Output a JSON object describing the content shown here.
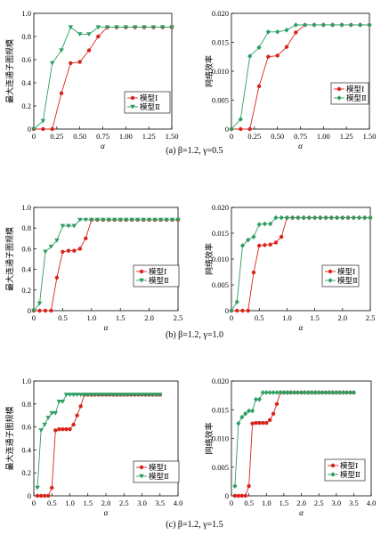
{
  "figure": {
    "captions": [
      "(a) β=1.2, γ=0.5",
      "(b) β=1.2, γ=1.0",
      "(c) β=1.2, γ=1.5"
    ]
  },
  "chart_data": [
    {
      "type": "line",
      "xlabel": "α",
      "ylabel": "最大连通子图规模",
      "xlim": [
        0,
        1.5
      ],
      "ylim": [
        0,
        1.0
      ],
      "xticks": [
        "0",
        "0.25",
        "0.50",
        "0.75",
        "1.00",
        "1.25",
        "1.50"
      ],
      "yticks": [
        "0",
        "0.2",
        "0.4",
        "0.6",
        "0.8",
        "1.0"
      ],
      "legend": "lower-right",
      "x": [
        0,
        0.1,
        0.2,
        0.3,
        0.4,
        0.5,
        0.6,
        0.7,
        0.8,
        0.9,
        1.0,
        1.1,
        1.2,
        1.3,
        1.4,
        1.5
      ],
      "series": [
        {
          "name": "模型Ⅰ",
          "color": "#d9241c",
          "marker": "circle",
          "values": [
            0,
            0,
            0,
            0.31,
            0.57,
            0.58,
            0.68,
            0.8,
            0.88,
            0.88,
            0.88,
            0.88,
            0.88,
            0.88,
            0.88,
            0.88
          ]
        },
        {
          "name": "模型Ⅱ",
          "color": "#2e9e63",
          "marker": "triangle-down",
          "values": [
            0,
            0.07,
            0.57,
            0.68,
            0.88,
            0.82,
            0.82,
            0.88,
            0.88,
            0.88,
            0.88,
            0.88,
            0.88,
            0.88,
            0.88,
            0.88
          ]
        }
      ]
    },
    {
      "type": "line",
      "xlabel": "α",
      "ylabel": "网络效率",
      "xlim": [
        0,
        1.5
      ],
      "ylim": [
        0,
        0.02
      ],
      "xticks": [
        "0",
        "0.25",
        "0.50",
        "0.75",
        "1.00",
        "1.25",
        "1.50"
      ],
      "yticks": [
        "0",
        "0.005",
        "0.010",
        "0.015",
        "0.020"
      ],
      "legend": "lower-right",
      "x": [
        0,
        0.1,
        0.2,
        0.3,
        0.4,
        0.5,
        0.6,
        0.7,
        0.8,
        0.9,
        1.0,
        1.1,
        1.2,
        1.3,
        1.4,
        1.5
      ],
      "series": [
        {
          "name": "模型Ⅰ",
          "color": "#d9241c",
          "marker": "circle",
          "values": [
            0,
            0,
            0,
            0.0074,
            0.0125,
            0.0127,
            0.0142,
            0.0167,
            0.018,
            0.018,
            0.018,
            0.018,
            0.018,
            0.018,
            0.018,
            0.018
          ]
        },
        {
          "name": "模型Ⅱ",
          "color": "#2e9e63",
          "marker": "diamond",
          "values": [
            0,
            0.0017,
            0.0126,
            0.0141,
            0.0168,
            0.0168,
            0.0171,
            0.018,
            0.018,
            0.018,
            0.018,
            0.018,
            0.018,
            0.018,
            0.018,
            0.018
          ]
        }
      ]
    },
    {
      "type": "line",
      "xlabel": "α",
      "ylabel": "最大连通子图规模",
      "xlim": [
        0,
        2.5
      ],
      "ylim": [
        0,
        1.0
      ],
      "xticks": [
        "0",
        "0.5",
        "1.0",
        "1.5",
        "2.0",
        "2.5"
      ],
      "yticks": [
        "0",
        "0.2",
        "0.4",
        "0.6",
        "0.8",
        "1.0"
      ],
      "legend": "lower-right",
      "x": [
        0,
        0.1,
        0.2,
        0.3,
        0.4,
        0.5,
        0.6,
        0.7,
        0.8,
        0.9,
        1.0,
        1.1,
        1.2,
        1.3,
        1.4,
        1.5,
        1.6,
        1.7,
        1.8,
        1.9,
        2.0,
        2.1,
        2.2,
        2.3,
        2.4,
        2.5
      ],
      "series": [
        {
          "name": "模型Ⅰ",
          "color": "#d9241c",
          "marker": "circle",
          "values": [
            0,
            0,
            0,
            0,
            0.32,
            0.57,
            0.58,
            0.58,
            0.6,
            0.7,
            0.88,
            0.88,
            0.88,
            0.88,
            0.88,
            0.88,
            0.88,
            0.88,
            0.88,
            0.88,
            0.88,
            0.88,
            0.88,
            0.88,
            0.88,
            0.88
          ]
        },
        {
          "name": "模型Ⅱ",
          "color": "#2e9e63",
          "marker": "triangle-down",
          "values": [
            0,
            0.07,
            0.57,
            0.62,
            0.68,
            0.82,
            0.82,
            0.82,
            0.88,
            0.88,
            0.88,
            0.88,
            0.88,
            0.88,
            0.88,
            0.88,
            0.88,
            0.88,
            0.88,
            0.88,
            0.88,
            0.88,
            0.88,
            0.88,
            0.88,
            0.88
          ]
        }
      ]
    },
    {
      "type": "line",
      "xlabel": "α",
      "ylabel": "网络效率",
      "xlim": [
        0,
        2.5
      ],
      "ylim": [
        0,
        0.02
      ],
      "xticks": [
        "0",
        "0.5",
        "1.0",
        "1.5",
        "2.0",
        "2.5"
      ],
      "yticks": [
        "0",
        "0.005",
        "0.010",
        "0.015",
        "0.020"
      ],
      "legend": "lower-right",
      "x": [
        0,
        0.1,
        0.2,
        0.3,
        0.4,
        0.5,
        0.6,
        0.7,
        0.8,
        0.9,
        1.0,
        1.1,
        1.2,
        1.3,
        1.4,
        1.5,
        1.6,
        1.7,
        1.8,
        1.9,
        2.0,
        2.1,
        2.2,
        2.3,
        2.4,
        2.5
      ],
      "series": [
        {
          "name": "模型Ⅰ",
          "color": "#d9241c",
          "marker": "circle",
          "values": [
            0,
            0,
            0,
            0,
            0.0074,
            0.0126,
            0.0127,
            0.0128,
            0.0132,
            0.0143,
            0.018,
            0.018,
            0.018,
            0.018,
            0.018,
            0.018,
            0.018,
            0.018,
            0.018,
            0.018,
            0.018,
            0.018,
            0.018,
            0.018,
            0.018,
            0.018
          ]
        },
        {
          "name": "模型Ⅱ",
          "color": "#2e9e63",
          "marker": "diamond",
          "values": [
            0,
            0.0017,
            0.0126,
            0.0137,
            0.0143,
            0.0167,
            0.0168,
            0.0168,
            0.018,
            0.018,
            0.018,
            0.018,
            0.018,
            0.018,
            0.018,
            0.018,
            0.018,
            0.018,
            0.018,
            0.018,
            0.018,
            0.018,
            0.018,
            0.018,
            0.018,
            0.018
          ]
        }
      ]
    },
    {
      "type": "line",
      "xlabel": "α",
      "ylabel": "最大连通子图规模",
      "xlim": [
        0,
        4.0
      ],
      "ylim": [
        0,
        1.0
      ],
      "xticks": [
        "0",
        "0.5",
        "1.0",
        "1.5",
        "2.0",
        "2.5",
        "3.0",
        "3.5",
        "4.0"
      ],
      "yticks": [
        "0",
        "0.2",
        "0.4",
        "0.6",
        "0.8",
        "1.0"
      ],
      "legend": "lower-right",
      "x": [
        0.1,
        0.2,
        0.3,
        0.4,
        0.5,
        0.6,
        0.7,
        0.8,
        0.9,
        1.0,
        1.1,
        1.2,
        1.3,
        1.4,
        1.5,
        1.6,
        1.7,
        1.8,
        1.9,
        2.0,
        2.1,
        2.2,
        2.3,
        2.4,
        2.5,
        2.6,
        2.7,
        2.8,
        2.9,
        3.0,
        3.1,
        3.2,
        3.3,
        3.4,
        3.5
      ],
      "series": [
        {
          "name": "模型Ⅰ",
          "color": "#d9241c",
          "marker": "circle",
          "values": [
            0,
            0,
            0,
            0,
            0.07,
            0.57,
            0.58,
            0.58,
            0.58,
            0.58,
            0.62,
            0.7,
            0.78,
            0.88,
            0.88,
            0.88,
            0.88,
            0.88,
            0.88,
            0.88,
            0.88,
            0.88,
            0.88,
            0.88,
            0.88,
            0.88,
            0.88,
            0.88,
            0.88,
            0.88,
            0.88,
            0.88,
            0.88,
            0.88,
            0.88
          ]
        },
        {
          "name": "模型Ⅱ",
          "color": "#2e9e63",
          "marker": "triangle-down",
          "values": [
            0.07,
            0.57,
            0.62,
            0.68,
            0.72,
            0.72,
            0.82,
            0.82,
            0.88,
            0.88,
            0.88,
            0.88,
            0.88,
            0.88,
            0.88,
            0.88,
            0.88,
            0.88,
            0.88,
            0.88,
            0.88,
            0.88,
            0.88,
            0.88,
            0.88,
            0.88,
            0.88,
            0.88,
            0.88,
            0.88,
            0.88,
            0.88,
            0.88,
            0.88,
            0.88
          ]
        }
      ]
    },
    {
      "type": "line",
      "xlabel": "α",
      "ylabel": "网络效率",
      "xlim": [
        0,
        4.0
      ],
      "ylim": [
        0,
        0.02
      ],
      "xticks": [
        "0",
        "0.5",
        "1.0",
        "1.5",
        "2.0",
        "2.5",
        "3.0",
        "3.5",
        "4.0"
      ],
      "yticks": [
        "0",
        "0.005",
        "0.010",
        "0.015",
        "0.020"
      ],
      "legend": "lower-right",
      "x": [
        0.1,
        0.2,
        0.3,
        0.4,
        0.5,
        0.6,
        0.7,
        0.8,
        0.9,
        1.0,
        1.1,
        1.2,
        1.3,
        1.4,
        1.5,
        1.6,
        1.7,
        1.8,
        1.9,
        2.0,
        2.1,
        2.2,
        2.3,
        2.4,
        2.5,
        2.6,
        2.7,
        2.8,
        2.9,
        3.0,
        3.1,
        3.2,
        3.3,
        3.4,
        3.5
      ],
      "series": [
        {
          "name": "模型Ⅰ",
          "color": "#d9241c",
          "marker": "circle",
          "values": [
            0,
            0,
            0,
            0,
            0.0017,
            0.0126,
            0.0127,
            0.0127,
            0.0127,
            0.0127,
            0.0132,
            0.0143,
            0.016,
            0.018,
            0.018,
            0.018,
            0.018,
            0.018,
            0.018,
            0.018,
            0.018,
            0.018,
            0.018,
            0.018,
            0.018,
            0.018,
            0.018,
            0.018,
            0.018,
            0.018,
            0.018,
            0.018,
            0.018,
            0.018,
            0.018
          ]
        },
        {
          "name": "模型Ⅱ",
          "color": "#2e9e63",
          "marker": "diamond",
          "values": [
            0.0017,
            0.0126,
            0.0137,
            0.0143,
            0.0148,
            0.0148,
            0.0168,
            0.0168,
            0.018,
            0.018,
            0.018,
            0.018,
            0.018,
            0.018,
            0.018,
            0.018,
            0.018,
            0.018,
            0.018,
            0.018,
            0.018,
            0.018,
            0.018,
            0.018,
            0.018,
            0.018,
            0.018,
            0.018,
            0.018,
            0.018,
            0.018,
            0.018,
            0.018,
            0.018,
            0.018
          ]
        }
      ]
    }
  ]
}
